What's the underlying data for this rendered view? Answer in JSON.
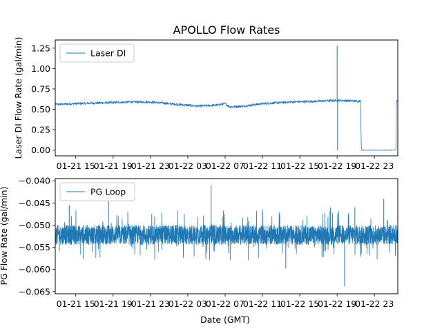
{
  "figure": {
    "title": "APOLLO Flow Rates",
    "xlabel": "Date (GMT)"
  },
  "chart_data": [
    {
      "type": "line",
      "title": "APOLLO Flow Rates",
      "xlabel": "",
      "ylabel": "Laser DI Flow Rate (gal/min)",
      "legend": {
        "label": "Laser DI",
        "placement": "top-left"
      },
      "color": "#1f77b4",
      "xlim_hours": [
        12.8,
        49.5
      ],
      "ylim": [
        -0.07,
        1.35
      ],
      "yticks": [
        0.0,
        0.25,
        0.5,
        0.75,
        1.0,
        1.25
      ],
      "ytick_labels": [
        "0.00",
        "0.25",
        "0.50",
        "0.75",
        "1.00",
        "1.25"
      ],
      "xticks_hours": [
        15,
        19,
        23,
        27,
        31,
        35,
        39,
        43,
        47
      ],
      "xtick_labels": [
        "01-21 15",
        "01-21 19",
        "01-21 23",
        "01-22 03",
        "01-22 07",
        "01-22 11",
        "01-22 15",
        "01-22 19",
        "01-22 23"
      ],
      "trend_points": [
        [
          12.8,
          0.56
        ],
        [
          15,
          0.57
        ],
        [
          18,
          0.58
        ],
        [
          21,
          0.59
        ],
        [
          23,
          0.59
        ],
        [
          25,
          0.57
        ],
        [
          28,
          0.54
        ],
        [
          30,
          0.55
        ],
        [
          31,
          0.57
        ],
        [
          31.5,
          0.53
        ],
        [
          33,
          0.54
        ],
        [
          35,
          0.57
        ],
        [
          38,
          0.59
        ],
        [
          41,
          0.6
        ],
        [
          43,
          0.61
        ],
        [
          45.5,
          0.6
        ],
        [
          45.6,
          0.0
        ],
        [
          49.3,
          0.0
        ],
        [
          49.35,
          0.6
        ],
        [
          49.5,
          0.6
        ]
      ],
      "noise_amplitude": 0.03,
      "spikes": [
        {
          "x_hour": 43.0,
          "from": 0.6,
          "to": 1.28
        },
        {
          "x_hour": 43.05,
          "from": 0.6,
          "to": 0.0
        }
      ]
    },
    {
      "type": "line",
      "title": "",
      "xlabel": "Date (GMT)",
      "ylabel": "PG Flow Rate (gal/min)",
      "legend": {
        "label": "PG Loop",
        "placement": "top-left"
      },
      "color": "#1f77b4",
      "xlim_hours": [
        12.8,
        49.5
      ],
      "ylim": [
        -0.0655,
        -0.0395
      ],
      "yticks": [
        -0.065,
        -0.06,
        -0.055,
        -0.05,
        -0.045,
        -0.04
      ],
      "ytick_labels": [
        "−0.065",
        "−0.060",
        "−0.055",
        "−0.050",
        "−0.045",
        "−0.040"
      ],
      "xticks_hours": [
        15,
        19,
        23,
        27,
        31,
        35,
        39,
        43,
        47
      ],
      "xtick_labels": [
        "01-21 15",
        "01-21 19",
        "01-21 23",
        "01-22 03",
        "01-22 07",
        "01-22 11",
        "01-22 15",
        "01-22 19",
        "01-22 23"
      ],
      "baseline": -0.0522,
      "band_half_width": 0.0022,
      "spikes": [
        {
          "x_hour": 14.3,
          "value": -0.0455
        },
        {
          "x_hour": 18.5,
          "value": -0.0435
        },
        {
          "x_hour": 29.5,
          "value": -0.041
        },
        {
          "x_hour": 37.5,
          "value": -0.0598
        },
        {
          "x_hour": 42.3,
          "value": -0.046
        },
        {
          "x_hour": 43.8,
          "value": -0.0638
        },
        {
          "x_hour": 44.9,
          "value": -0.046
        },
        {
          "x_hour": 48.0,
          "value": -0.044
        }
      ]
    }
  ]
}
